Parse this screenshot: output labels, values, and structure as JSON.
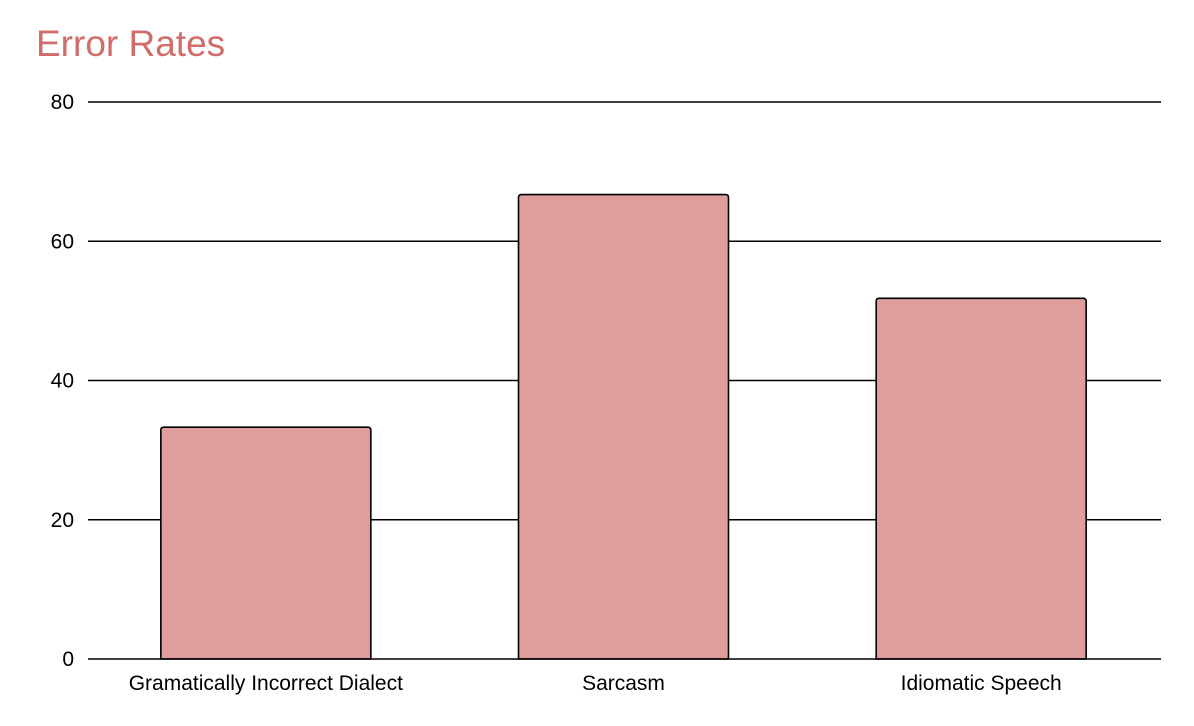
{
  "chart_data": {
    "type": "bar",
    "title": "Error Rates",
    "categories": [
      "Gramatically Incorrect Dialect",
      "Sarcasm",
      "Idiomatic Speech"
    ],
    "series": [
      {
        "values": [
          33.3,
          66.7,
          51.8
        ]
      }
    ],
    "xlabel": "",
    "ylabel": "",
    "ylim": [
      0,
      80
    ],
    "yticks": [
      0,
      20,
      40,
      60,
      80
    ],
    "grid": true,
    "legend": "none"
  },
  "colors": {
    "title": "#d06c6a",
    "bar_fill": "#df9d9b",
    "bar_stroke": "#000000",
    "gridline": "#000000"
  }
}
